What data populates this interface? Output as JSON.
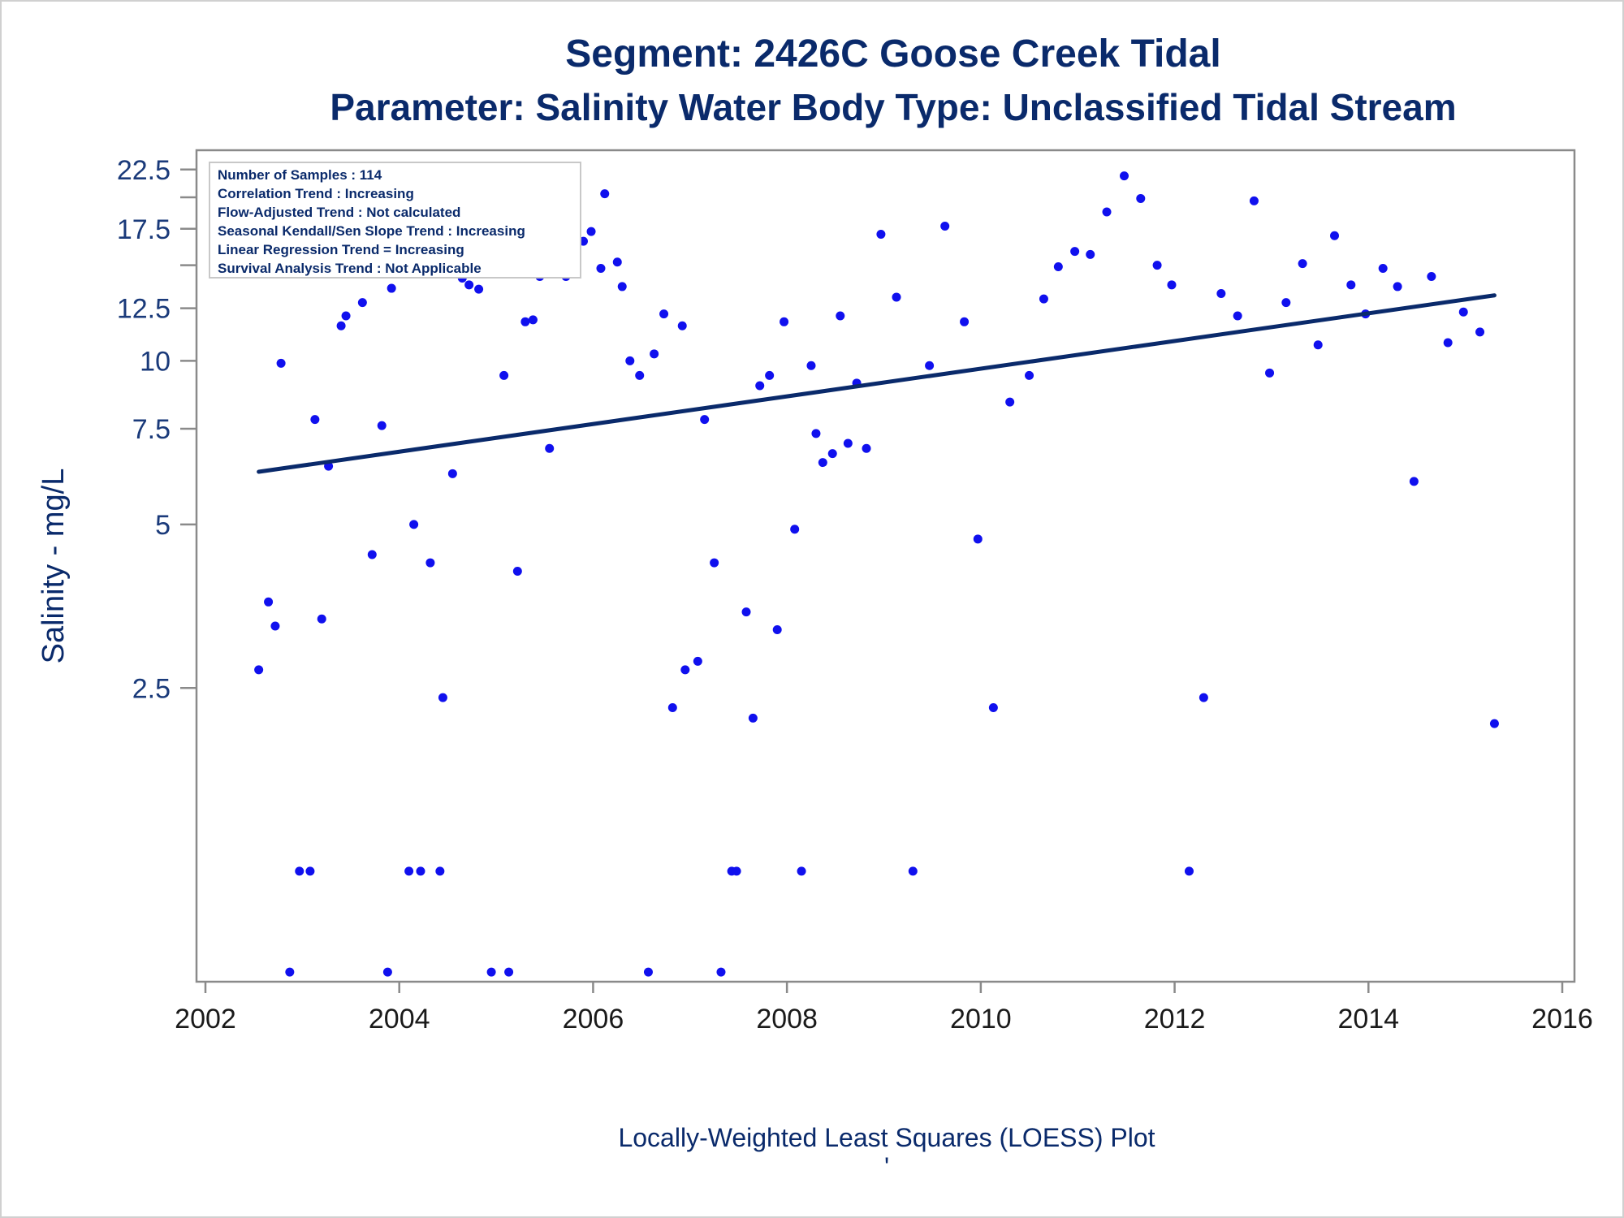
{
  "chart_data": {
    "type": "scatter",
    "title": "Segment: 2426C  Goose Creek Tidal",
    "subtitle": "Parameter: Salinity   Water Body Type: Unclassified Tidal Stream",
    "xlabel": "Locally-Weighted Least Squares (LOESS) Plot",
    "ylabel": "Salinity - mg/L",
    "footnote": "'",
    "y_scale": "log",
    "xlim": [
      2002,
      2016
    ],
    "ylim": [
      0.72,
      24
    ],
    "x_ticks": [
      "2002",
      "2004",
      "2006",
      "2008",
      "2010",
      "2012",
      "2014",
      "2016"
    ],
    "y_ticks": [
      {
        "value": 2.5,
        "label": "2.5"
      },
      {
        "value": 5,
        "label": "5"
      },
      {
        "value": 7.5,
        "label": "7.5"
      },
      {
        "value": 10,
        "label": "10"
      },
      {
        "value": 12.5,
        "label": "12.5"
      },
      {
        "value": 17.5,
        "label": "17.5"
      },
      {
        "value": 22.5,
        "label": "22.5"
      }
    ],
    "y_minor_ticks": [
      15,
      20
    ],
    "info_box": [
      "Number of Samples : 114",
      "Correlation Trend : Increasing",
      "Flow-Adjusted Trend : Not calculated",
      "Seasonal Kendall/Sen Slope Trend : Increasing",
      "Linear Regression Trend = Increasing",
      "Survival Analysis Trend : Not Applicable"
    ],
    "info_box_position": "top-left",
    "colors": {
      "points": "#1010ee",
      "trend": "#0a2a6b",
      "frame": "#8a8a8a"
    },
    "trend_line": {
      "x": [
        2002.55,
        2015.3
      ],
      "y": [
        6.25,
        13.2
      ]
    },
    "points": [
      [
        2002.55,
        2.7
      ],
      [
        2002.65,
        3.6
      ],
      [
        2002.72,
        3.25
      ],
      [
        2002.78,
        9.9
      ],
      [
        2002.87,
        0.75
      ],
      [
        2002.97,
        1.15
      ],
      [
        2003.08,
        1.15
      ],
      [
        2003.13,
        7.8
      ],
      [
        2003.2,
        3.35
      ],
      [
        2003.27,
        6.4
      ],
      [
        2003.4,
        11.6
      ],
      [
        2003.45,
        12.1
      ],
      [
        2003.62,
        12.8
      ],
      [
        2003.72,
        4.4
      ],
      [
        2003.82,
        7.6
      ],
      [
        2003.88,
        0.75
      ],
      [
        2003.92,
        13.6
      ],
      [
        2004.1,
        1.15
      ],
      [
        2004.15,
        5.0
      ],
      [
        2004.22,
        1.15
      ],
      [
        2004.32,
        4.25
      ],
      [
        2004.42,
        1.15
      ],
      [
        2004.45,
        2.4
      ],
      [
        2004.55,
        6.2
      ],
      [
        2004.65,
        14.2
      ],
      [
        2004.72,
        13.8
      ],
      [
        2004.82,
        13.55
      ],
      [
        2004.9,
        17.1
      ],
      [
        2004.95,
        0.75
      ],
      [
        2005.08,
        9.4
      ],
      [
        2005.13,
        0.75
      ],
      [
        2005.22,
        4.1
      ],
      [
        2005.3,
        11.8
      ],
      [
        2005.38,
        11.9
      ],
      [
        2005.45,
        14.3
      ],
      [
        2005.55,
        6.9
      ],
      [
        2005.67,
        15.5
      ],
      [
        2005.72,
        14.3
      ],
      [
        2005.82,
        16.6
      ],
      [
        2005.9,
        16.6
      ],
      [
        2005.98,
        17.3
      ],
      [
        2006.08,
        14.8
      ],
      [
        2006.12,
        20.3
      ],
      [
        2006.25,
        15.2
      ],
      [
        2006.3,
        13.7
      ],
      [
        2006.38,
        10.0
      ],
      [
        2006.48,
        9.4
      ],
      [
        2006.57,
        0.75
      ],
      [
        2006.63,
        10.3
      ],
      [
        2006.73,
        12.2
      ],
      [
        2006.82,
        2.3
      ],
      [
        2006.92,
        11.6
      ],
      [
        2006.95,
        2.7
      ],
      [
        2007.08,
        2.8
      ],
      [
        2007.15,
        7.8
      ],
      [
        2007.25,
        4.25
      ],
      [
        2007.32,
        0.75
      ],
      [
        2007.43,
        1.15
      ],
      [
        2007.48,
        1.15
      ],
      [
        2007.58,
        3.45
      ],
      [
        2007.65,
        2.2
      ],
      [
        2007.72,
        9.0
      ],
      [
        2007.82,
        9.4
      ],
      [
        2007.9,
        3.2
      ],
      [
        2007.97,
        11.8
      ],
      [
        2008.08,
        4.9
      ],
      [
        2008.15,
        1.15
      ],
      [
        2008.25,
        9.8
      ],
      [
        2008.3,
        7.35
      ],
      [
        2008.37,
        6.5
      ],
      [
        2008.47,
        6.75
      ],
      [
        2008.55,
        12.1
      ],
      [
        2008.63,
        7.05
      ],
      [
        2008.72,
        9.1
      ],
      [
        2008.82,
        6.9
      ],
      [
        2008.97,
        17.1
      ],
      [
        2009.13,
        13.1
      ],
      [
        2009.3,
        1.15
      ],
      [
        2009.47,
        9.8
      ],
      [
        2009.63,
        17.7
      ],
      [
        2009.83,
        11.8
      ],
      [
        2009.97,
        4.7
      ],
      [
        2010.13,
        2.3
      ],
      [
        2010.3,
        8.4
      ],
      [
        2010.5,
        9.4
      ],
      [
        2010.65,
        13.0
      ],
      [
        2010.8,
        14.9
      ],
      [
        2010.97,
        15.9
      ],
      [
        2011.13,
        15.7
      ],
      [
        2011.3,
        18.8
      ],
      [
        2011.48,
        21.9
      ],
      [
        2011.65,
        19.9
      ],
      [
        2011.82,
        15.0
      ],
      [
        2011.97,
        13.8
      ],
      [
        2012.15,
        1.15
      ],
      [
        2012.3,
        2.4
      ],
      [
        2012.48,
        13.3
      ],
      [
        2012.65,
        12.1
      ],
      [
        2012.82,
        19.7
      ],
      [
        2012.98,
        9.5
      ],
      [
        2013.15,
        12.8
      ],
      [
        2013.32,
        15.1
      ],
      [
        2013.48,
        10.7
      ],
      [
        2013.65,
        17.0
      ],
      [
        2013.82,
        13.8
      ],
      [
        2013.97,
        12.2
      ],
      [
        2014.15,
        14.8
      ],
      [
        2014.3,
        13.7
      ],
      [
        2014.47,
        6.0
      ],
      [
        2014.65,
        14.3
      ],
      [
        2014.82,
        10.8
      ],
      [
        2014.98,
        12.3
      ],
      [
        2015.15,
        11.3
      ],
      [
        2015.3,
        2.15
      ]
    ]
  }
}
